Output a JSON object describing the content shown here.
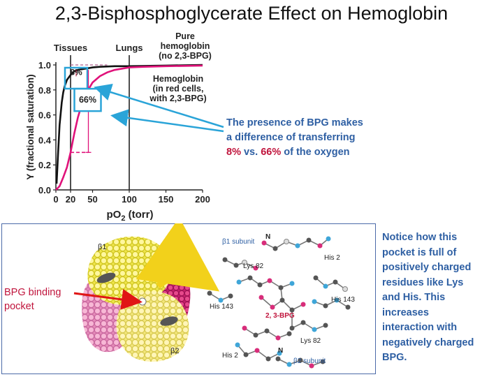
{
  "title": "2,3-Bisphosphoglycerate Effect on Hemoglobin",
  "chart_data": {
    "type": "line",
    "ylabel": "Y (fractional saturation)",
    "xlabel_main": "pO",
    "xlabel_sub": "2",
    "xlabel_unit": "(torr)",
    "x_ticks": [
      "0",
      "20",
      "50",
      "100",
      "150",
      "200"
    ],
    "y_ticks": [
      "0.0",
      "0.2",
      "0.4",
      "0.6",
      "0.8",
      "1.0"
    ],
    "xlim": [
      0,
      200
    ],
    "ylim": [
      0,
      1.0
    ],
    "markers": [
      {
        "label": "Tissues",
        "x": 20
      },
      {
        "label": "Lungs",
        "x": 100
      }
    ],
    "series": [
      {
        "name_lines": [
          "Pure",
          "hemoglobin",
          "(no 2,3-BPG)"
        ],
        "color": "#111111",
        "x": [
          1,
          3,
          5,
          8,
          10,
          12,
          15,
          20,
          25,
          30,
          40,
          50,
          60,
          80,
          100,
          150,
          200
        ],
        "y": [
          0.05,
          0.3,
          0.52,
          0.7,
          0.78,
          0.83,
          0.88,
          0.92,
          0.95,
          0.96,
          0.97,
          0.98,
          0.985,
          0.99,
          0.99,
          0.995,
          1.0
        ]
      },
      {
        "name_lines": [
          "Hemoglobin",
          "(in red cells,",
          "with 2,3-BPG)"
        ],
        "color": "#e0127a",
        "x": [
          0,
          5,
          10,
          15,
          20,
          25,
          30,
          35,
          40,
          50,
          60,
          70,
          80,
          100,
          120,
          150,
          200
        ],
        "y": [
          0,
          0.03,
          0.1,
          0.18,
          0.3,
          0.45,
          0.58,
          0.68,
          0.76,
          0.86,
          0.91,
          0.94,
          0.96,
          0.98,
          0.985,
          0.99,
          0.995
        ]
      }
    ],
    "annotations": [
      {
        "label": "8%",
        "x": 20,
        "y_from": 0.92,
        "y_to": 1.0
      },
      {
        "label": "66%",
        "x": 50,
        "y_from": 0.3,
        "y_to": 0.96
      }
    ]
  },
  "note": {
    "line1": "The presence of BPG makes",
    "line2": "a difference of transferring",
    "pct1": "8%",
    "vs": " vs. ",
    "pct2": "66%",
    "tail": " of the oxygen"
  },
  "structure_labels": {
    "b1": "β1",
    "b2": "β2",
    "b1_subunit": "β1 subunit",
    "b2_subunit": "β2 subunit",
    "n_top": "N",
    "n_bottom": "N",
    "his2_top": "His 2",
    "his2_bottom": "His 2",
    "lys82_top": "Lys 82",
    "lys82_bottom": "Lys 82",
    "his143_left": "His 143",
    "his143_right": "His 143",
    "bpg": "2, 3-BPG"
  },
  "bpg_label": {
    "line1": "BPG binding",
    "line2": "pocket"
  },
  "side_note": {
    "lines": [
      "Notice how this",
      "pocket is full of",
      "positively charged",
      "residues like Lys",
      "and His.  This",
      "increases",
      "interaction with",
      "negatively charged",
      "BPG."
    ]
  },
  "colors": {
    "pink_curve": "#e0127a",
    "black_curve": "#111111",
    "callout_blue": "#2aa4d8",
    "note_blue": "#2e5fa3",
    "highlight_red": "#c0143c"
  }
}
